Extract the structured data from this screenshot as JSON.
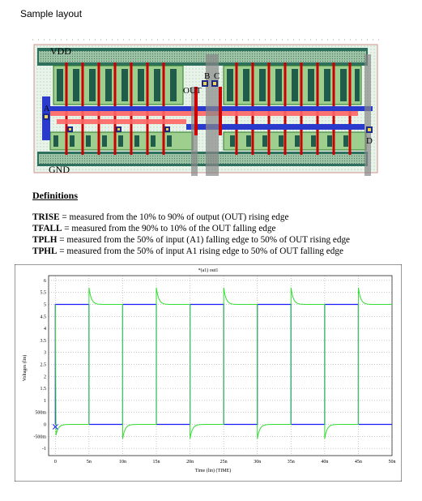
{
  "page": {
    "title": "Sample layout"
  },
  "layout": {
    "labels": {
      "vdd": "VDD",
      "gnd": "GND",
      "out": "OUT",
      "b": "B",
      "c": "C",
      "a": "A",
      "d": "D"
    }
  },
  "definitions": {
    "heading": "Definitions",
    "items": [
      {
        "term": "TRISE",
        "text": " = measured from the 10% to 90% of output (OUT) rising edge"
      },
      {
        "term": "TFALL",
        "text": " = measured from the 90% to 10% of the OUT falling edge"
      },
      {
        "term": "TPLH",
        "text": " = measured from the 50% of input (A1) falling edge to 50% of OUT rising edge"
      },
      {
        "term": "TPHL",
        "text": " = measured from the 50% of input A1 rising edge to 50% of OUT falling edge"
      }
    ]
  },
  "chart_data": {
    "type": "line",
    "title": "*(a1) out1",
    "xlabel": "Time (lin) (TIME)",
    "ylabel": "Voltages (lin)",
    "x_ticks": [
      "0",
      "5n",
      "10n",
      "15n",
      "20n",
      "25n",
      "30n",
      "35n",
      "40n",
      "45n",
      "50n"
    ],
    "y_ticks": [
      "6",
      "5.5",
      "5",
      "4.5",
      "4",
      "3.5",
      "3",
      "2.5",
      "2",
      "1.5",
      "1",
      "500m",
      "0",
      "-500m",
      "-1"
    ],
    "xlim_ns": [
      -1,
      50
    ],
    "ylim": [
      -1.3,
      6.2
    ],
    "grid": true,
    "series": [
      {
        "color": "#1a1aff",
        "kind": "square",
        "high": 5,
        "low": 0,
        "period_ns": 10,
        "duty_low_first_ns": 5
      },
      {
        "color": "#33dd33",
        "kind": "inverted-rc",
        "high": 5,
        "low": 0,
        "overshoot": 5.7,
        "undershoot": -0.6,
        "period_ns": 10
      }
    ]
  },
  "colors": {
    "blue": "#1a1aff",
    "green": "#33dd33",
    "metal1": "#ff5555",
    "poly": "#cc0000",
    "ndiff": "#22aa22",
    "contact": "#1111aa"
  }
}
